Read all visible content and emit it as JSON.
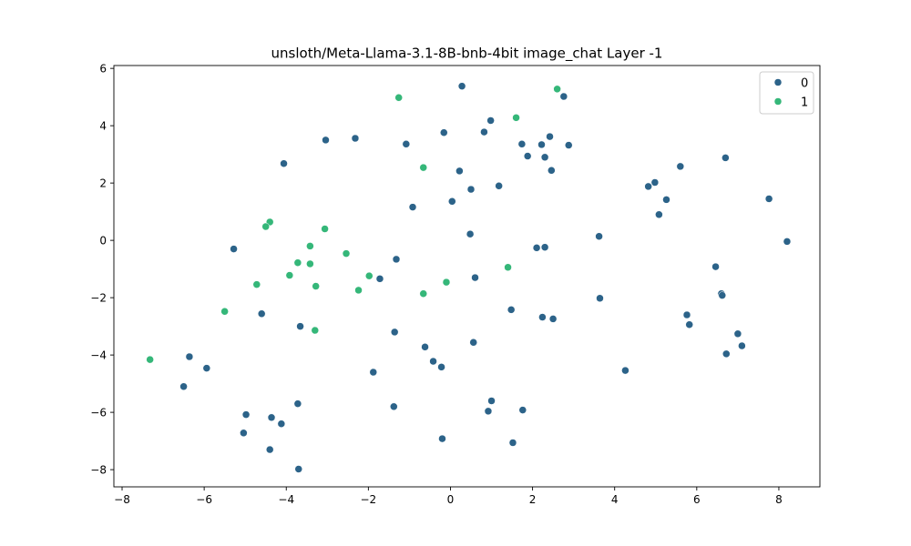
{
  "chart_data": {
    "type": "scatter",
    "title": "unsloth/Meta-Llama-3.1-8B-bnb-4bit image_chat Layer -1",
    "xlabel": "",
    "ylabel": "",
    "xlim": [
      -8.2,
      9.0
    ],
    "ylim": [
      -8.6,
      6.1
    ],
    "xticks": [
      -8,
      -6,
      -4,
      -2,
      0,
      2,
      4,
      6,
      8
    ],
    "xtick_labels": [
      "−8",
      "−6",
      "−4",
      "−2",
      "0",
      "2",
      "4",
      "6",
      "8"
    ],
    "yticks": [
      -8,
      -6,
      -4,
      -2,
      0,
      2,
      4,
      6
    ],
    "ytick_labels": [
      "−8",
      "−6",
      "−4",
      "−2",
      "0",
      "2",
      "4",
      "6"
    ],
    "grid": false,
    "legend_position": "top-right",
    "series": [
      {
        "name": "0",
        "color": "#2c6389",
        "points": [
          [
            0.28,
            5.38
          ],
          [
            2.76,
            5.02
          ],
          [
            0.98,
            4.18
          ],
          [
            -0.16,
            3.76
          ],
          [
            0.82,
            3.78
          ],
          [
            2.42,
            3.62
          ],
          [
            -3.04,
            3.5
          ],
          [
            -2.32,
            3.56
          ],
          [
            -1.08,
            3.36
          ],
          [
            1.74,
            3.36
          ],
          [
            2.22,
            3.34
          ],
          [
            2.88,
            3.32
          ],
          [
            1.88,
            2.94
          ],
          [
            2.3,
            2.9
          ],
          [
            6.7,
            2.88
          ],
          [
            -4.06,
            2.68
          ],
          [
            5.6,
            2.58
          ],
          [
            0.22,
            2.42
          ],
          [
            2.46,
            2.44
          ],
          [
            4.98,
            2.02
          ],
          [
            1.18,
            1.9
          ],
          [
            4.82,
            1.88
          ],
          [
            0.5,
            1.78
          ],
          [
            5.26,
            1.42
          ],
          [
            7.76,
            1.45
          ],
          [
            0.04,
            1.36
          ],
          [
            -0.92,
            1.16
          ],
          [
            5.08,
            0.9
          ],
          [
            0.48,
            0.22
          ],
          [
            3.62,
            0.14
          ],
          [
            8.2,
            -0.04
          ],
          [
            2.1,
            -0.26
          ],
          [
            2.3,
            -0.24
          ],
          [
            -5.28,
            -0.3
          ],
          [
            -1.32,
            -0.66
          ],
          [
            6.46,
            -0.92
          ],
          [
            -1.72,
            -1.34
          ],
          [
            0.6,
            -1.3
          ],
          [
            6.6,
            -1.86
          ],
          [
            6.62,
            -1.92
          ],
          [
            3.64,
            -2.02
          ],
          [
            1.48,
            -2.42
          ],
          [
            -4.6,
            -2.56
          ],
          [
            5.76,
            -2.6
          ],
          [
            2.24,
            -2.68
          ],
          [
            2.5,
            -2.74
          ],
          [
            5.82,
            -2.94
          ],
          [
            -3.66,
            -3.0
          ],
          [
            -1.36,
            -3.2
          ],
          [
            7.0,
            -3.26
          ],
          [
            0.56,
            -3.56
          ],
          [
            -0.62,
            -3.72
          ],
          [
            7.1,
            -3.68
          ],
          [
            6.72,
            -3.96
          ],
          [
            -6.36,
            -4.06
          ],
          [
            -0.42,
            -4.22
          ],
          [
            -0.22,
            -4.42
          ],
          [
            -5.94,
            -4.46
          ],
          [
            4.26,
            -4.54
          ],
          [
            -1.88,
            -4.6
          ],
          [
            -6.5,
            -5.1
          ],
          [
            1.0,
            -5.6
          ],
          [
            -3.72,
            -5.7
          ],
          [
            -1.38,
            -5.8
          ],
          [
            1.76,
            -5.92
          ],
          [
            0.92,
            -5.96
          ],
          [
            -4.98,
            -6.08
          ],
          [
            -4.36,
            -6.18
          ],
          [
            -4.12,
            -6.4
          ],
          [
            -5.04,
            -6.72
          ],
          [
            -0.2,
            -6.92
          ],
          [
            1.52,
            -7.06
          ],
          [
            -4.4,
            -7.3
          ],
          [
            -3.7,
            -7.98
          ]
        ]
      },
      {
        "name": "1",
        "color": "#35b779",
        "points": [
          [
            2.6,
            5.28
          ],
          [
            -1.26,
            4.98
          ],
          [
            1.6,
            4.28
          ],
          [
            -0.66,
            2.54
          ],
          [
            -4.4,
            0.64
          ],
          [
            -4.5,
            0.48
          ],
          [
            -3.06,
            0.4
          ],
          [
            -3.42,
            -0.2
          ],
          [
            -2.54,
            -0.46
          ],
          [
            -3.72,
            -0.78
          ],
          [
            -3.42,
            -0.82
          ],
          [
            1.4,
            -0.94
          ],
          [
            -3.92,
            -1.22
          ],
          [
            -1.98,
            -1.24
          ],
          [
            -0.1,
            -1.46
          ],
          [
            -4.72,
            -1.54
          ],
          [
            -3.28,
            -1.6
          ],
          [
            -2.24,
            -1.74
          ],
          [
            -0.66,
            -1.86
          ],
          [
            -5.5,
            -2.48
          ],
          [
            -3.3,
            -3.14
          ],
          [
            -7.32,
            -4.16
          ]
        ]
      }
    ]
  }
}
